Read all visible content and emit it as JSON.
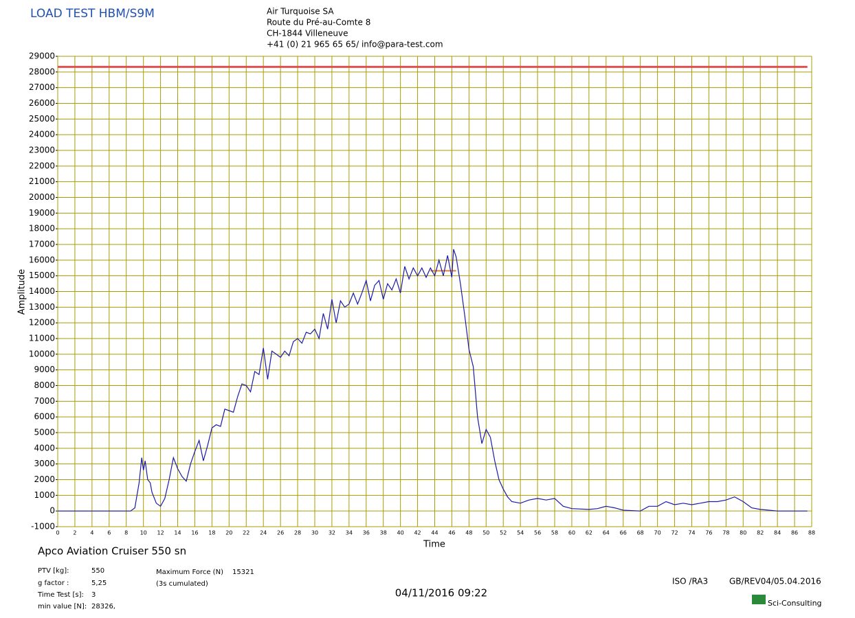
{
  "header": {
    "title": "LOAD TEST HBM/S9M",
    "address": [
      "Air Turquoise SA",
      "Route du Pré-au-Comte 8",
      "CH-1844 Villeneuve",
      "+41 (0) 21 965 65 65/ info@para-test.com"
    ]
  },
  "footer": {
    "glider": "Apco Aviation Cruiser 550 sn",
    "params": [
      [
        "PTV [kg]:",
        "550"
      ],
      [
        "g factor :",
        "5,25"
      ],
      [
        "Time Test [s]:",
        "3"
      ],
      [
        "min value [N]:",
        "28326,"
      ]
    ],
    "max_force_label": "Maximum Force (N)",
    "max_force": "15321",
    "cumulated": "(3s cumulated)",
    "date": "04/11/2016 09:22",
    "iso": "ISO /RA3",
    "rev": "GB/REV04/05.04.2016",
    "logo": "Sci-Consulting"
  },
  "chart_data": {
    "type": "line",
    "xlabel": "Time",
    "ylabel": "Amplitude",
    "xlim": [
      0,
      88
    ],
    "ylim": [
      -1000,
      29000
    ],
    "grid": true,
    "grid_color": "#aa9c00",
    "xticks": [
      0,
      2,
      4,
      6,
      8,
      10,
      12,
      14,
      16,
      18,
      20,
      22,
      24,
      26,
      28,
      30,
      32,
      34,
      36,
      38,
      40,
      42,
      44,
      46,
      48,
      50,
      52,
      54,
      56,
      58,
      60,
      62,
      64,
      66,
      68,
      70,
      72,
      74,
      76,
      78,
      80,
      82,
      84,
      86,
      88
    ],
    "yticks": [
      -1000,
      0,
      1000,
      2000,
      3000,
      4000,
      5000,
      6000,
      7000,
      8000,
      9000,
      10000,
      11000,
      12000,
      13000,
      14000,
      15000,
      16000,
      17000,
      18000,
      19000,
      20000,
      21000,
      22000,
      23000,
      24000,
      25000,
      26000,
      27000,
      28000,
      29000
    ],
    "x": [
      0,
      8.5,
      9,
      9.5,
      9.8,
      10,
      10.2,
      10.5,
      10.8,
      11,
      11.5,
      12,
      12.5,
      13,
      13.5,
      14,
      14.5,
      15,
      15.5,
      16,
      16.5,
      17,
      17.5,
      18,
      18.5,
      19,
      19.5,
      20,
      20.5,
      21,
      21.5,
      22,
      22.5,
      23,
      23.5,
      24,
      24.5,
      25,
      25.5,
      26,
      26.5,
      27,
      27.5,
      28,
      28.5,
      29,
      29.5,
      30,
      30.5,
      31,
      31.5,
      32,
      32.5,
      33,
      33.5,
      34,
      34.5,
      35,
      35.5,
      36,
      36.5,
      37,
      37.5,
      38,
      38.5,
      39,
      39.5,
      40,
      40.5,
      41,
      41.5,
      42,
      42.5,
      43,
      43.5,
      44,
      44.5,
      45,
      45.5,
      46,
      46.2,
      46.5,
      47,
      47.5,
      48,
      48.5,
      49,
      49.5,
      50,
      50.5,
      51,
      51.5,
      52,
      52.5,
      53,
      54,
      55,
      56,
      57,
      58,
      59,
      60,
      62,
      63,
      64,
      65,
      66,
      68,
      69,
      70,
      71,
      72,
      73,
      74,
      75,
      76,
      77,
      78,
      79,
      80,
      81,
      82,
      83,
      84,
      87.5
    ],
    "series": [
      {
        "color": "#1a1aa8",
        "values": [
          0,
          0,
          200,
          1800,
          3400,
          2600,
          3200,
          2000,
          1800,
          1200,
          500,
          300,
          800,
          2000,
          3400,
          2700,
          2200,
          1900,
          3000,
          3800,
          4500,
          3200,
          4200,
          5300,
          5500,
          5400,
          6500,
          6400,
          6300,
          7300,
          8100,
          8000,
          7600,
          8900,
          8700,
          10400,
          8400,
          10200,
          10000,
          9800,
          10200,
          9900,
          10800,
          11000,
          10700,
          11400,
          11300,
          11600,
          11000,
          12600,
          11600,
          13500,
          12000,
          13400,
          13000,
          13200,
          13900,
          13200,
          13900,
          14700,
          13400,
          14400,
          14700,
          13500,
          14500,
          14100,
          14800,
          13900,
          15600,
          14800,
          15500,
          15000,
          15500,
          14900,
          15500,
          15000,
          16000,
          15000,
          16300,
          14900,
          16700,
          16200,
          14500,
          12500,
          10300,
          9200,
          6000,
          4300,
          5200,
          4700,
          3200,
          2000,
          1400,
          900,
          600,
          500,
          700,
          800,
          700,
          800,
          300,
          150,
          100,
          150,
          300,
          200,
          50,
          0,
          300,
          300,
          600,
          400,
          500,
          400,
          500,
          600,
          600,
          700,
          900,
          600,
          200,
          100,
          50,
          0,
          0
        ]
      }
    ],
    "reference_lines": [
      {
        "value": 28326,
        "x": [
          0,
          87.5
        ],
        "color": "#e05050"
      },
      {
        "value": 15321,
        "x": [
          43.5,
          46.5
        ],
        "color": "#e08030"
      }
    ]
  }
}
